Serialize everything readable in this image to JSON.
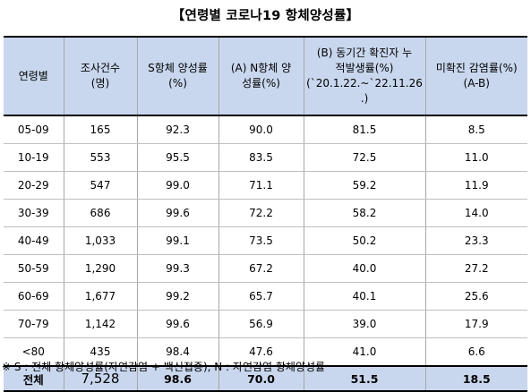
{
  "title": "【연령별 코로나19 항체양성률】",
  "columns": [
    [
      "연령별"
    ],
    [
      "조사건수",
      "(명)"
    ],
    [
      "S항체 양성률",
      "(%)"
    ],
    [
      "(A) N항체 양",
      "성률(%)"
    ],
    [
      "(B) 동기간 확진자 누",
      "적발생률(%)",
      "(`20.1.22.~`22.11.26",
      ".)"
    ],
    [
      "미확진 감염률(%)",
      "(A-B)"
    ]
  ],
  "rows": [
    [
      "05-09",
      "165",
      "92.3",
      "90.0",
      "81.5",
      "8.5"
    ],
    [
      "10-19",
      "553",
      "95.5",
      "83.5",
      "72.5",
      "11.0"
    ],
    [
      "20-29",
      "547",
      "99.0",
      "71.1",
      "59.2",
      "11.9"
    ],
    [
      "30-39",
      "686",
      "99.6",
      "72.2",
      "58.2",
      "14.0"
    ],
    [
      "40-49",
      "1,033",
      "99.1",
      "73.5",
      "50.2",
      "23.3"
    ],
    [
      "50-59",
      "1,290",
      "99.3",
      "67.2",
      "40.0",
      "27.2"
    ],
    [
      "60-69",
      "1,677",
      "99.2",
      "65.7",
      "40.1",
      "25.6"
    ],
    [
      "70-79",
      "1,142",
      "99.6",
      "56.9",
      "39.0",
      "17.9"
    ],
    [
      "<80",
      "435",
      "98.4",
      "47.6",
      "41.0",
      "6.6"
    ]
  ],
  "total": [
    "전체",
    "7,528",
    "98.6",
    "70.0",
    "51.5",
    "18.5"
  ],
  "footnote": "※ S : 전체 항체양성률(자연감염 + 백신접종), N : 자연감염 항체양성률",
  "colors": {
    "header_bg": "#c9d7ee",
    "total_bg": "#c9d7ee"
  }
}
